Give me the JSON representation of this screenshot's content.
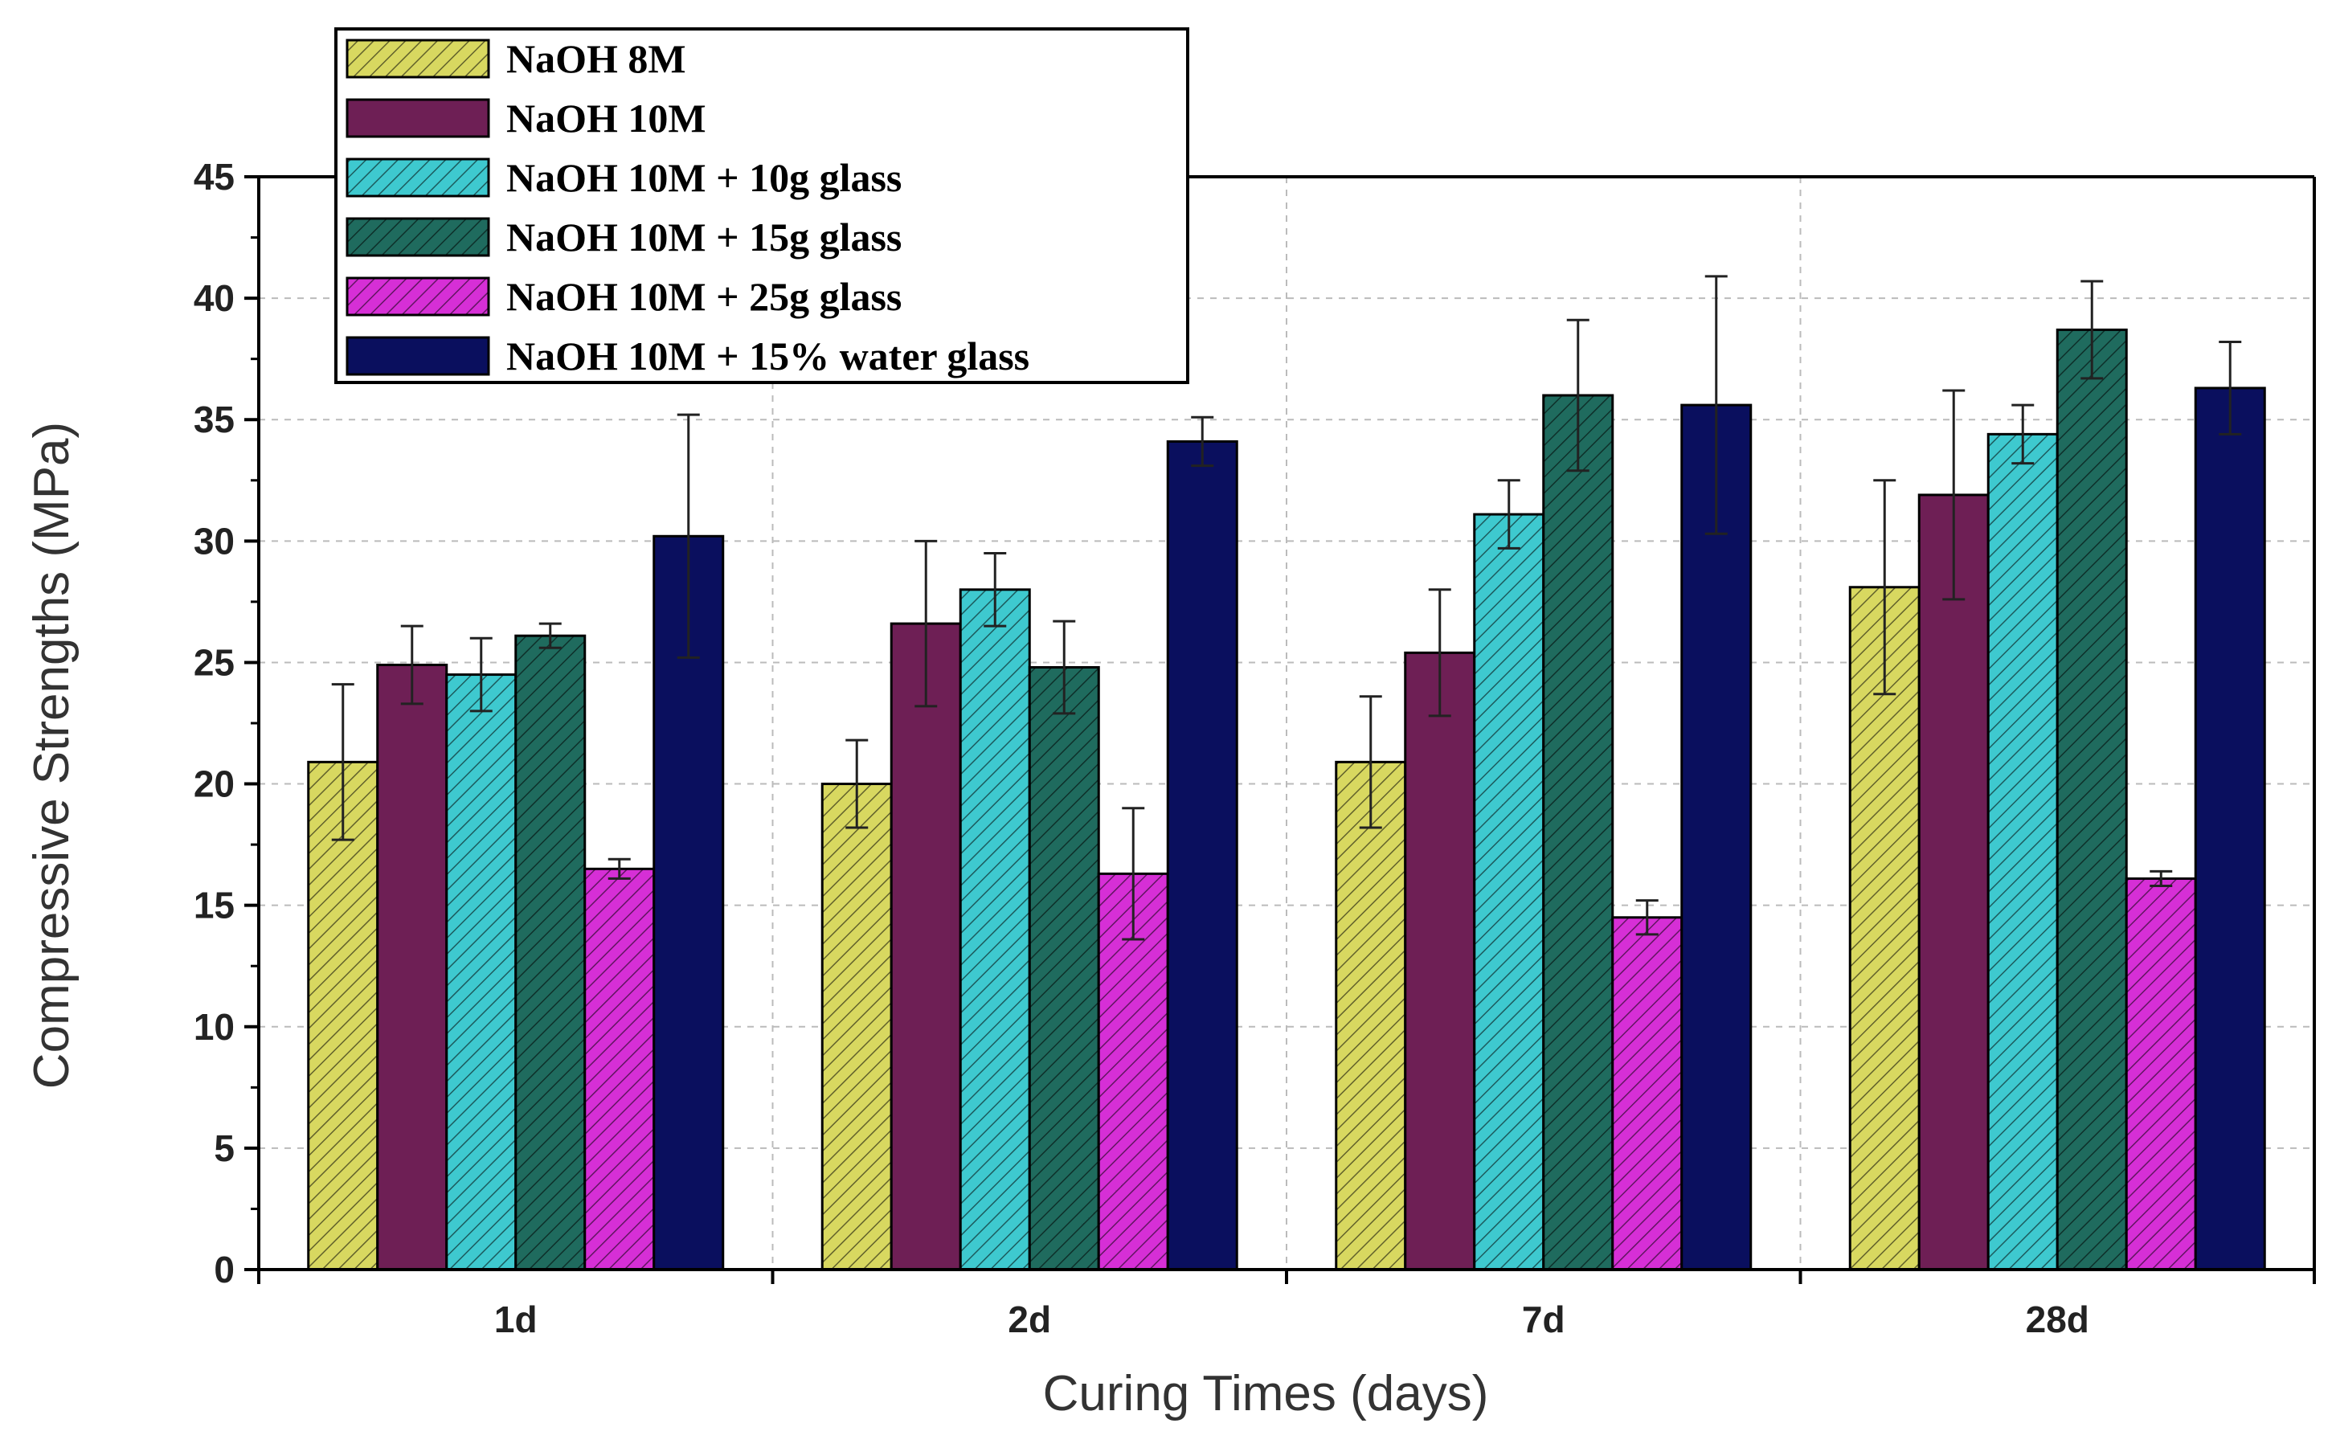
{
  "chart_data": {
    "type": "bar",
    "title": "",
    "xlabel": "Curing Times (days)",
    "ylabel": "Compressive Strengths (MPa)",
    "ylim": [
      0,
      45
    ],
    "yticks": [
      0,
      5,
      10,
      15,
      20,
      25,
      30,
      35,
      40,
      45
    ],
    "categories": [
      "1d",
      "2d",
      "7d",
      "28d"
    ],
    "grid": true,
    "legend_position": "top-left",
    "series": [
      {
        "name": "NaOH 8M",
        "color": "#d8d860",
        "hatch": true,
        "values": [
          20.9,
          20.0,
          20.9,
          28.1
        ],
        "errors": [
          3.2,
          1.8,
          2.7,
          4.4
        ]
      },
      {
        "name": "NaOH 10M",
        "color": "#6e1f55",
        "hatch": false,
        "values": [
          24.9,
          26.6,
          25.4,
          31.9
        ],
        "errors": [
          1.6,
          3.4,
          2.6,
          4.3
        ]
      },
      {
        "name": "NaOH 10M + 10g glass",
        "color": "#3ec9cf",
        "hatch": true,
        "values": [
          24.5,
          28.0,
          31.1,
          34.4
        ],
        "errors": [
          1.5,
          1.5,
          1.4,
          1.2
        ]
      },
      {
        "name": "NaOH 10M + 15g glass",
        "color": "#1f6b5e",
        "hatch": true,
        "values": [
          26.1,
          24.8,
          36.0,
          38.7
        ],
        "errors": [
          0.5,
          1.9,
          3.1,
          2.0
        ]
      },
      {
        "name": "NaOH 10M + 25g glass",
        "color": "#d62fd6",
        "hatch": true,
        "values": [
          16.5,
          16.3,
          14.5,
          16.1
        ],
        "errors": [
          0.4,
          2.7,
          0.7,
          0.3
        ]
      },
      {
        "name": "NaOH 10M + 15% water glass",
        "color": "#0a0f5e",
        "hatch": false,
        "values": [
          30.2,
          34.1,
          35.6,
          36.3
        ],
        "errors": [
          5.0,
          1.0,
          5.3,
          1.9
        ]
      }
    ]
  }
}
